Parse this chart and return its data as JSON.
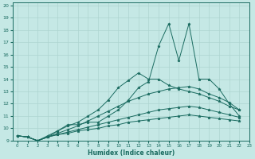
{
  "bg_color": "#c5e8e5",
  "grid_color": "#aed4d0",
  "line_color": "#1a6b60",
  "xlabel": "Humidex (Indice chaleur)",
  "xlim": [
    -0.5,
    23
  ],
  "ylim": [
    9,
    20.2
  ],
  "yticks": [
    9,
    10,
    11,
    12,
    13,
    14,
    15,
    16,
    17,
    18,
    19,
    20
  ],
  "xticks": [
    0,
    1,
    2,
    3,
    4,
    5,
    6,
    7,
    8,
    9,
    10,
    11,
    12,
    13,
    14,
    15,
    16,
    17,
    18,
    19,
    20,
    21,
    22,
    23
  ],
  "series": [
    [
      9.4,
      9.3,
      9.0,
      9.3,
      9.8,
      10.3,
      10.3,
      10.5,
      10.5,
      11.0,
      11.5,
      12.3,
      13.3,
      13.8,
      16.7,
      18.5,
      15.5,
      18.5,
      14.0,
      14.0,
      13.2,
      12.0,
      11.0
    ],
    [
      9.4,
      9.3,
      9.0,
      9.4,
      9.8,
      10.2,
      10.5,
      11.0,
      11.5,
      12.3,
      13.3,
      13.9,
      14.5,
      14.0,
      14.0,
      13.5,
      13.2,
      13.0,
      12.8,
      12.5,
      12.2,
      11.8,
      11.5
    ],
    [
      9.4,
      9.3,
      9.0,
      9.3,
      9.6,
      9.9,
      10.2,
      10.6,
      11.0,
      11.4,
      11.8,
      12.2,
      12.5,
      12.8,
      13.0,
      13.2,
      13.3,
      13.4,
      13.2,
      12.8,
      12.5,
      12.1,
      11.5
    ],
    [
      9.4,
      9.3,
      9.0,
      9.3,
      9.5,
      9.7,
      9.9,
      10.1,
      10.3,
      10.5,
      10.7,
      10.9,
      11.1,
      11.3,
      11.5,
      11.6,
      11.7,
      11.8,
      11.7,
      11.5,
      11.3,
      11.1,
      10.9
    ],
    [
      9.4,
      9.3,
      9.0,
      9.3,
      9.5,
      9.6,
      9.8,
      9.9,
      10.0,
      10.2,
      10.3,
      10.5,
      10.6,
      10.7,
      10.8,
      10.9,
      11.0,
      11.1,
      11.0,
      10.9,
      10.8,
      10.7,
      10.6
    ]
  ]
}
